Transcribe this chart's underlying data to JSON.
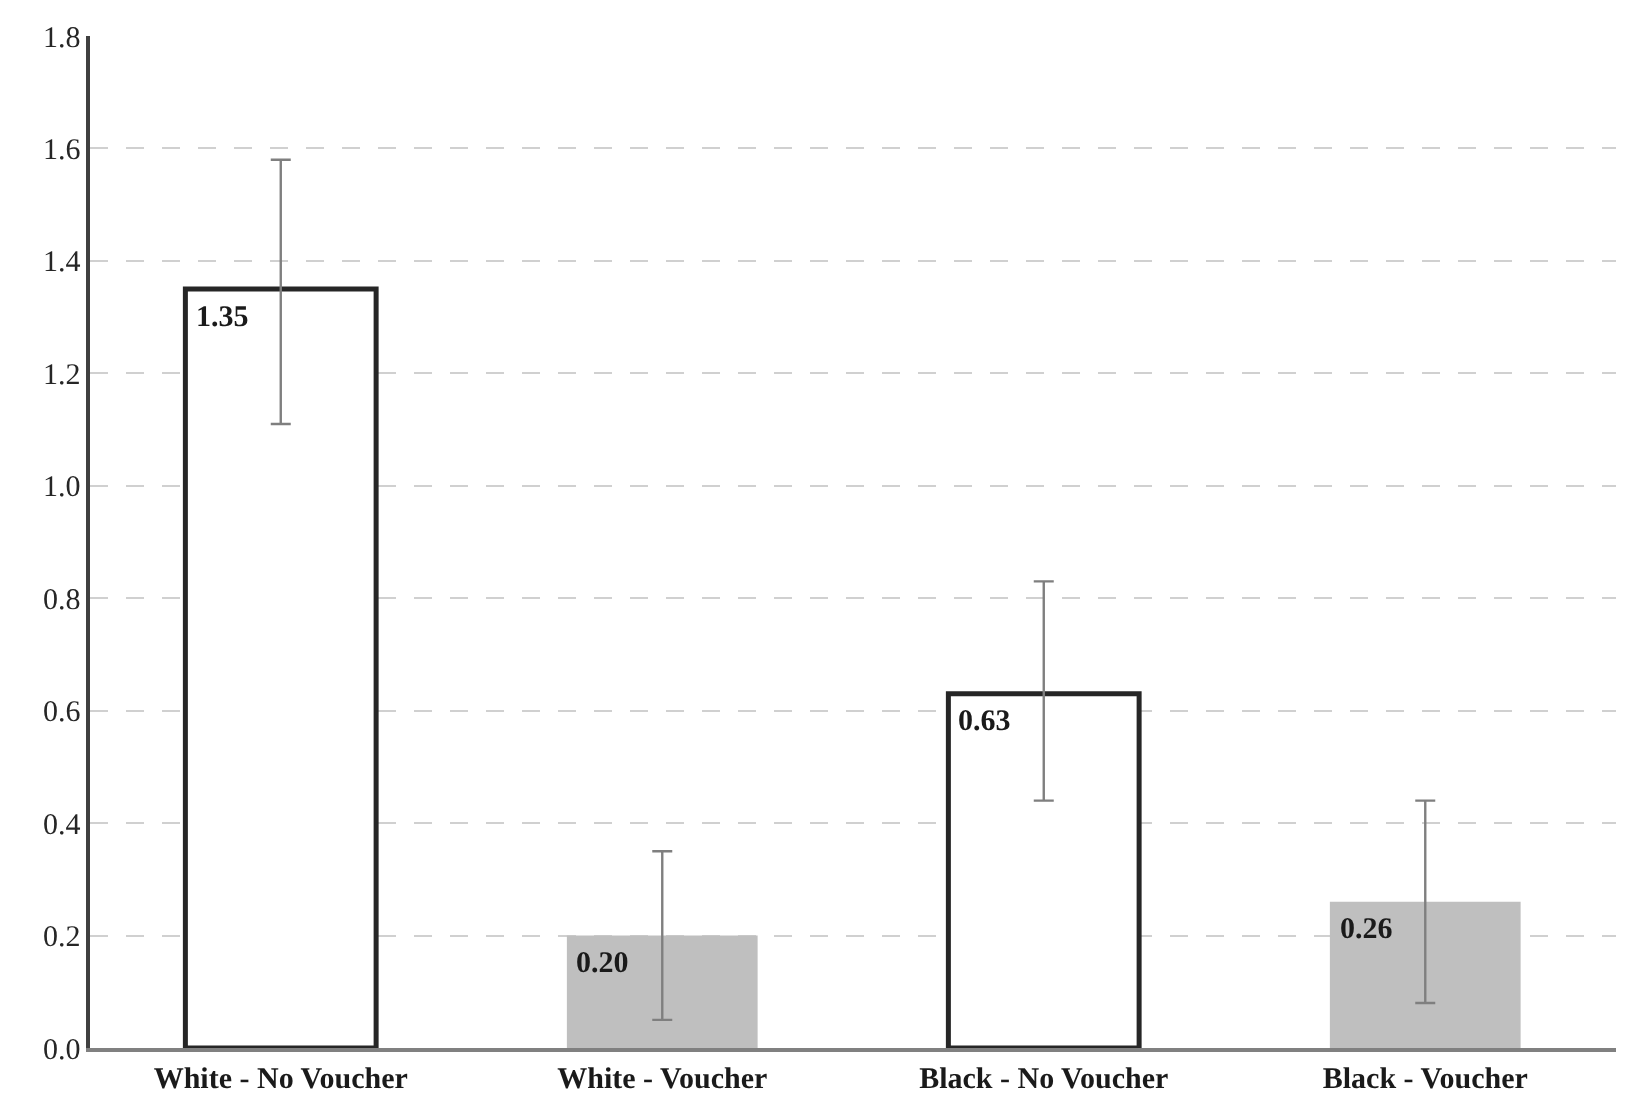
{
  "chart_data": {
    "type": "bar",
    "categories": [
      "White - No Voucher",
      "White - Voucher",
      "Black - No Voucher",
      "Black - Voucher"
    ],
    "values": [
      1.35,
      0.2,
      0.63,
      0.26
    ],
    "value_labels": [
      "1.35",
      "0.20",
      "0.63",
      "0.26"
    ],
    "colors": [
      "#ffffff",
      "#bfbfbf",
      "#ffffff",
      "#bfbfbf"
    ],
    "errors": [
      [
        1.11,
        1.58
      ],
      [
        0.05,
        0.35
      ],
      [
        0.44,
        0.83
      ],
      [
        0.08,
        0.44
      ]
    ],
    "ylim": [
      0,
      1.8
    ],
    "yticks": [
      {
        "value": 0,
        "label": "0.0"
      },
      {
        "value": 0.2,
        "label": "0.2"
      },
      {
        "value": 0.4,
        "label": "0.4"
      },
      {
        "value": 0.6,
        "label": "0.6"
      },
      {
        "value": 0.8,
        "label": "0.8"
      },
      {
        "value": 1.0,
        "label": "1.0"
      },
      {
        "value": 1.2,
        "label": "1.2"
      },
      {
        "value": 1.4,
        "label": "1.4"
      },
      {
        "value": 1.6,
        "label": "1.6"
      },
      {
        "value": 1.8,
        "label": "1.8"
      }
    ],
    "grid": "y"
  }
}
